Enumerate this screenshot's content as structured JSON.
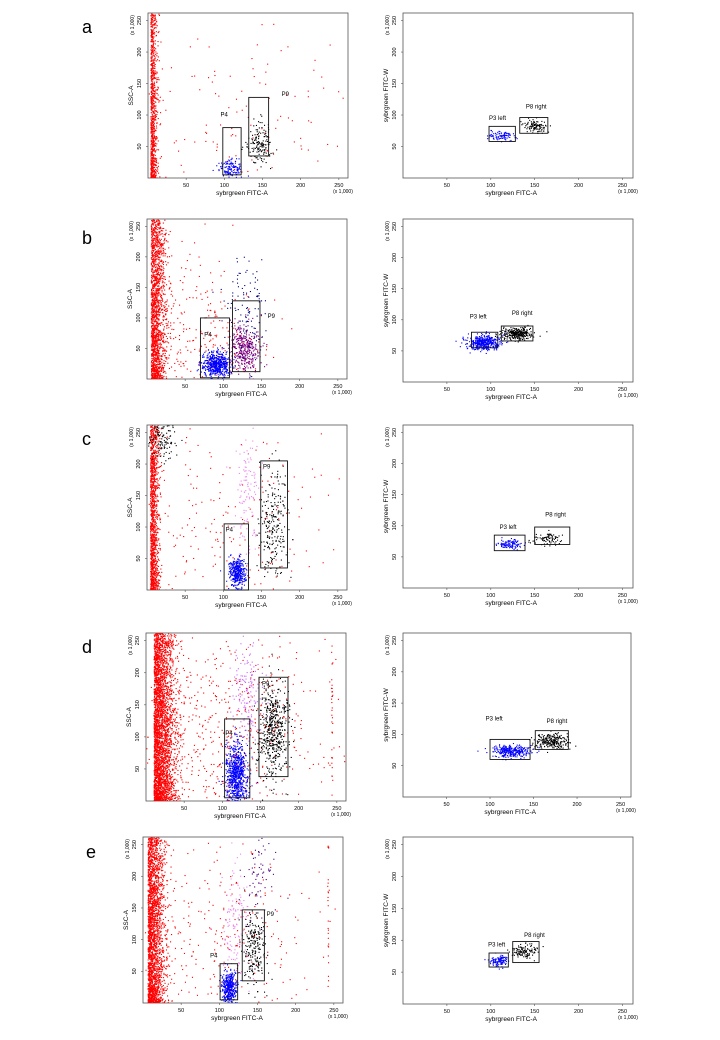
{
  "chart_data": [
    {
      "type": "scatter",
      "panel": "a",
      "side": "left",
      "xlabel": "sybrgreen FITC-A",
      "ylabel": "SSC-A",
      "x_scale_label": "(x 1,000)",
      "y_scale_label": "(x 1,000)",
      "xlim": [
        0,
        262
      ],
      "ylim": [
        0,
        262
      ],
      "xticks": [
        "50",
        "100",
        "150",
        "200",
        "250"
      ],
      "yticks": [
        "50",
        "100",
        "150",
        "200",
        "250"
      ],
      "gates": [
        {
          "name": "P4",
          "x": [
            98,
            122
          ],
          "y": [
            5,
            80
          ],
          "label_at": [
            95,
            98
          ]
        },
        {
          "name": "P9",
          "x": [
            132,
            158
          ],
          "y": [
            35,
            128
          ],
          "label_at": [
            175,
            130
          ]
        }
      ],
      "populations": [
        {
          "color": "#ff0000",
          "points": 900,
          "x_center": 3,
          "x_spread": 4,
          "y_center": 60,
          "y_spread": 70,
          "y_min": 0,
          "y_max": 262
        },
        {
          "color": "#ff0000",
          "points": 140,
          "x_center": 120,
          "x_spread": 85,
          "y_center": 90,
          "y_spread": 75
        },
        {
          "color": "#0000ff",
          "points": 130,
          "x_center": 108,
          "x_spread": 8,
          "y_center": 18,
          "y_spread": 7
        },
        {
          "color": "#000000",
          "points": 150,
          "x_center": 146,
          "x_spread": 8,
          "y_center": 55,
          "y_spread": 15
        }
      ]
    },
    {
      "type": "scatter",
      "panel": "a",
      "side": "right",
      "xlabel": "sybrgreen FITC-A",
      "ylabel": "sybrgreen FITC-W",
      "x_scale_label": "(x 1,000)",
      "y_scale_label": "(x 1,000)",
      "xlim": [
        0,
        262
      ],
      "ylim": [
        0,
        262
      ],
      "xticks": [
        "50",
        "100",
        "150",
        "200",
        "250"
      ],
      "yticks": [
        "50",
        "100",
        "150",
        "200",
        "250"
      ],
      "gates": [
        {
          "name": "P3 left",
          "x": [
            98,
            128
          ],
          "y": [
            58,
            82
          ],
          "label_at": [
            98,
            92
          ]
        },
        {
          "name": "P8 right",
          "x": [
            133,
            165
          ],
          "y": [
            71,
            96
          ],
          "label_at": [
            140,
            110
          ]
        }
      ],
      "populations": [
        {
          "color": "#0000ff",
          "points": 90,
          "x_center": 113,
          "x_spread": 7,
          "y_center": 68,
          "y_spread": 4
        },
        {
          "color": "#000000",
          "points": 110,
          "x_center": 150,
          "x_spread": 7,
          "y_center": 83,
          "y_spread": 5
        }
      ]
    },
    {
      "type": "scatter",
      "panel": "b",
      "side": "left",
      "xlabel": "sybrgreen FITC-A",
      "ylabel": "SSC-A",
      "x_scale_label": "(x 1,000)",
      "y_scale_label": "(x 1,000)",
      "xlim": [
        0,
        262
      ],
      "ylim": [
        0,
        262
      ],
      "xticks": [
        "50",
        "100",
        "150",
        "200",
        "250"
      ],
      "yticks": [
        "50",
        "100",
        "150",
        "200",
        "250"
      ],
      "gates": [
        {
          "name": "P4",
          "x": [
            70,
            108
          ],
          "y": [
            2,
            100
          ],
          "label_at": [
            75,
            70
          ]
        },
        {
          "name": "P9",
          "x": [
            112,
            148
          ],
          "y": [
            12,
            128
          ],
          "label_at": [
            158,
            100
          ]
        }
      ],
      "populations": [
        {
          "color": "#ff0000",
          "points": 1700,
          "x_center": 5,
          "x_spread": 9,
          "y_center": 100,
          "y_spread": 90,
          "y_min": 0,
          "y_max": 262
        },
        {
          "color": "#ff0000",
          "points": 350,
          "x_center": 60,
          "x_spread": 50,
          "y_center": 60,
          "y_spread": 70
        },
        {
          "color": "#0000ff",
          "points": 550,
          "x_center": 90,
          "x_spread": 9,
          "y_center": 25,
          "y_spread": 10
        },
        {
          "color": "#800080",
          "points": 380,
          "x_center": 128,
          "x_spread": 9,
          "y_center": 50,
          "y_spread": 20
        },
        {
          "color": "#000080",
          "points": 120,
          "x_center": 130,
          "x_spread": 14,
          "y_center": 110,
          "y_spread": 40
        }
      ]
    },
    {
      "type": "scatter",
      "panel": "b",
      "side": "right",
      "xlabel": "sybrgreen FITC-A",
      "ylabel": "sybrgreen FITC-W",
      "x_scale_label": "(x 1,000)",
      "y_scale_label": "(x 1,000)",
      "xlim": [
        0,
        262
      ],
      "ylim": [
        0,
        262
      ],
      "xticks": [
        "50",
        "100",
        "150",
        "200",
        "250"
      ],
      "yticks": [
        "50",
        "100",
        "150",
        "200",
        "250"
      ],
      "gates": [
        {
          "name": "P3 left",
          "x": [
            78,
            108
          ],
          "y": [
            55,
            80
          ],
          "label_at": [
            76,
            102
          ]
        },
        {
          "name": "P8 right",
          "x": [
            112,
            148
          ],
          "y": [
            66,
            90
          ],
          "label_at": [
            124,
            108
          ]
        }
      ],
      "populations": [
        {
          "color": "#0000ff",
          "points": 420,
          "x_center": 92,
          "x_spread": 9,
          "y_center": 64,
          "y_spread": 6
        },
        {
          "color": "#000000",
          "points": 300,
          "x_center": 130,
          "x_spread": 9,
          "y_center": 78,
          "y_spread": 5
        }
      ]
    },
    {
      "type": "scatter",
      "panel": "c",
      "side": "left",
      "xlabel": "sybrgreen FITC-A",
      "ylabel": "SSC-A",
      "x_scale_label": "(x 1,000)",
      "y_scale_label": "(x 1,000)",
      "xlim": [
        0,
        262
      ],
      "ylim": [
        0,
        262
      ],
      "xticks": [
        "50",
        "100",
        "150",
        "200",
        "250"
      ],
      "yticks": [
        "50",
        "100",
        "150",
        "200",
        "250"
      ],
      "gates": [
        {
          "name": "P4",
          "x": [
            101,
            133
          ],
          "y": [
            0,
            105
          ],
          "label_at": [
            103,
            93
          ]
        },
        {
          "name": "P9",
          "x": [
            149,
            184
          ],
          "y": [
            35,
            205
          ],
          "label_at": [
            152,
            193
          ]
        }
      ],
      "populations": [
        {
          "color": "#ff0000",
          "points": 1300,
          "x_center": 4,
          "x_spread": 5,
          "y_center": 100,
          "y_spread": 90,
          "y_min": 0,
          "y_max": 262
        },
        {
          "color": "#ff0000",
          "points": 220,
          "x_center": 110,
          "x_spread": 75,
          "y_center": 100,
          "y_spread": 80
        },
        {
          "color": "#000000",
          "points": 120,
          "x_center": 18,
          "x_spread": 10,
          "y_center": 240,
          "y_spread": 15
        },
        {
          "color": "#0000ff",
          "points": 380,
          "x_center": 118,
          "x_spread": 5,
          "y_center": 28,
          "y_spread": 12
        },
        {
          "color": "#ee82ee",
          "points": 120,
          "x_center": 130,
          "x_spread": 8,
          "y_center": 150,
          "y_spread": 50
        },
        {
          "color": "#000000",
          "points": 230,
          "x_center": 165,
          "x_spread": 9,
          "y_center": 100,
          "y_spread": 45
        }
      ]
    },
    {
      "type": "scatter",
      "panel": "c",
      "side": "right",
      "xlabel": "sybrgreen FITC-A",
      "ylabel": "sybrgreen FITC-W",
      "x_scale_label": "(x 1,000)",
      "y_scale_label": "(x 1,000)",
      "xlim": [
        0,
        262
      ],
      "ylim": [
        0,
        262
      ],
      "xticks": [
        "50",
        "100",
        "150",
        "200",
        "250"
      ],
      "yticks": [
        "50",
        "100",
        "150",
        "200",
        "250"
      ],
      "gates": [
        {
          "name": "P3 left",
          "x": [
            104,
            139
          ],
          "y": [
            60,
            85
          ],
          "label_at": [
            110,
            95
          ]
        },
        {
          "name": "P8 right",
          "x": [
            150,
            190
          ],
          "y": [
            70,
            98
          ],
          "label_at": [
            162,
            115
          ]
        }
      ],
      "populations": [
        {
          "color": "#0000ff",
          "points": 110,
          "x_center": 120,
          "x_spread": 7,
          "y_center": 71,
          "y_spread": 4
        },
        {
          "color": "#000000",
          "points": 80,
          "x_center": 165,
          "x_spread": 9,
          "y_center": 80,
          "y_spread": 5
        }
      ]
    },
    {
      "type": "scatter",
      "panel": "d",
      "side": "left",
      "xlabel": "sybrgreen FITC-A",
      "ylabel": "SSC-A",
      "x_scale_label": "(x 1,000)",
      "y_scale_label": "(x 1,000)",
      "xlim": [
        0,
        262
      ],
      "ylim": [
        0,
        262
      ],
      "xticks": [
        "50",
        "100",
        "150",
        "200",
        "250"
      ],
      "yticks": [
        "50",
        "100",
        "150",
        "200",
        "250"
      ],
      "gates": [
        {
          "name": "P4",
          "x": [
            103,
            136
          ],
          "y": [
            5,
            128
          ],
          "label_at": [
            104,
            103
          ]
        },
        {
          "name": "P9",
          "x": [
            148,
            186
          ],
          "y": [
            38,
            193
          ],
          "label_at": [
            152,
            180
          ]
        }
      ],
      "populations": [
        {
          "color": "#ff0000",
          "points": 3200,
          "x_center": 10,
          "x_spread": 13,
          "y_center": 130,
          "y_spread": 110,
          "y_min": 0,
          "y_max": 262
        },
        {
          "color": "#ff0000",
          "points": 700,
          "x_center": 95,
          "x_spread": 70,
          "y_center": 110,
          "y_spread": 90
        },
        {
          "color": "#ff0000",
          "points": 40,
          "x_center": 243,
          "x_spread": 0.5,
          "y_center": 130,
          "y_spread": 90
        },
        {
          "color": "#0000ff",
          "points": 780,
          "x_center": 118,
          "x_spread": 7,
          "y_center": 40,
          "y_spread": 25
        },
        {
          "color": "#cc66ff",
          "points": 160,
          "x_center": 132,
          "x_spread": 10,
          "y_center": 170,
          "y_spread": 45
        },
        {
          "color": "#000000",
          "points": 520,
          "x_center": 166,
          "x_spread": 10,
          "y_center": 110,
          "y_spread": 40
        }
      ]
    },
    {
      "type": "scatter",
      "panel": "d",
      "side": "right",
      "xlabel": "sybrgreen FITC-A",
      "ylabel": "sybrgreen FITC-W",
      "x_scale_label": "(x 1,000)",
      "y_scale_label": "(x 1,000)",
      "xlim": [
        0,
        262
      ],
      "ylim": [
        0,
        262
      ],
      "xticks": [
        "50",
        "100",
        "150",
        "200",
        "250"
      ],
      "yticks": [
        "50",
        "100",
        "150",
        "200",
        "250"
      ],
      "gates": [
        {
          "name": "P3 left",
          "x": [
            100,
            146
          ],
          "y": [
            60,
            92
          ],
          "label_at": [
            95,
            122
          ]
        },
        {
          "name": "P8 right",
          "x": [
            152,
            190
          ],
          "y": [
            76,
            106
          ],
          "label_at": [
            165,
            118
          ]
        }
      ],
      "populations": [
        {
          "color": "#0000ff",
          "points": 320,
          "x_center": 124,
          "x_spread": 11,
          "y_center": 74,
          "y_spread": 5
        },
        {
          "color": "#000000",
          "points": 240,
          "x_center": 170,
          "x_spread": 10,
          "y_center": 90,
          "y_spread": 6
        }
      ]
    },
    {
      "type": "scatter",
      "panel": "e",
      "side": "left",
      "xlabel": "sybrgreen FITC-A",
      "ylabel": "SSC-A",
      "x_scale_label": "(x 1,000)",
      "y_scale_label": "(x 1,000)",
      "xlim": [
        0,
        262
      ],
      "ylim": [
        0,
        262
      ],
      "xticks": [
        "50",
        "100",
        "150",
        "200",
        "250"
      ],
      "yticks": [
        "50",
        "100",
        "150",
        "200",
        "250"
      ],
      "gates": [
        {
          "name": "P4",
          "x": [
            101,
            124
          ],
          "y": [
            5,
            62
          ],
          "label_at": [
            88,
            72
          ]
        },
        {
          "name": "P9",
          "x": [
            130,
            159
          ],
          "y": [
            35,
            147
          ],
          "label_at": [
            162,
            137
          ]
        }
      ],
      "populations": [
        {
          "color": "#ff0000",
          "points": 2400,
          "x_center": 6,
          "x_spread": 10,
          "y_center": 110,
          "y_spread": 100,
          "y_min": 0,
          "y_max": 262
        },
        {
          "color": "#ff0000",
          "points": 320,
          "x_center": 95,
          "x_spread": 70,
          "y_center": 100,
          "y_spread": 90
        },
        {
          "color": "#ff0000",
          "points": 30,
          "x_center": 242,
          "x_spread": 0.5,
          "y_center": 120,
          "y_spread": 90
        },
        {
          "color": "#0000ff",
          "points": 430,
          "x_center": 112,
          "x_spread": 5,
          "y_center": 25,
          "y_spread": 13
        },
        {
          "color": "#ee82ee",
          "points": 130,
          "x_center": 122,
          "x_spread": 9,
          "y_center": 120,
          "y_spread": 50
        },
        {
          "color": "#000000",
          "points": 220,
          "x_center": 145,
          "x_spread": 8,
          "y_center": 90,
          "y_spread": 30
        },
        {
          "color": "#4b0082",
          "points": 70,
          "x_center": 150,
          "x_spread": 12,
          "y_center": 200,
          "y_spread": 40
        }
      ]
    },
    {
      "type": "scatter",
      "panel": "e",
      "side": "right",
      "xlabel": "sybrgreen FITC-A",
      "ylabel": "sybrgreen FITC-W",
      "x_scale_label": "(x 1,000)",
      "y_scale_label": "(x 1,000)",
      "xlim": [
        0,
        262
      ],
      "ylim": [
        0,
        262
      ],
      "xticks": [
        "50",
        "100",
        "150",
        "200",
        "250"
      ],
      "yticks": [
        "50",
        "100",
        "150",
        "200",
        "250"
      ],
      "gates": [
        {
          "name": "P3 left",
          "x": [
            98,
            120
          ],
          "y": [
            58,
            80
          ],
          "label_at": [
            97,
            90
          ]
        },
        {
          "name": "P8 right",
          "x": [
            125,
            155
          ],
          "y": [
            65,
            98
          ],
          "label_at": [
            138,
            105
          ]
        }
      ],
      "populations": [
        {
          "color": "#0000ff",
          "points": 120,
          "x_center": 108,
          "x_spread": 5,
          "y_center": 68,
          "y_spread": 4
        },
        {
          "color": "#000000",
          "points": 120,
          "x_center": 138,
          "x_spread": 7,
          "y_center": 84,
          "y_spread": 5
        }
      ]
    }
  ]
}
